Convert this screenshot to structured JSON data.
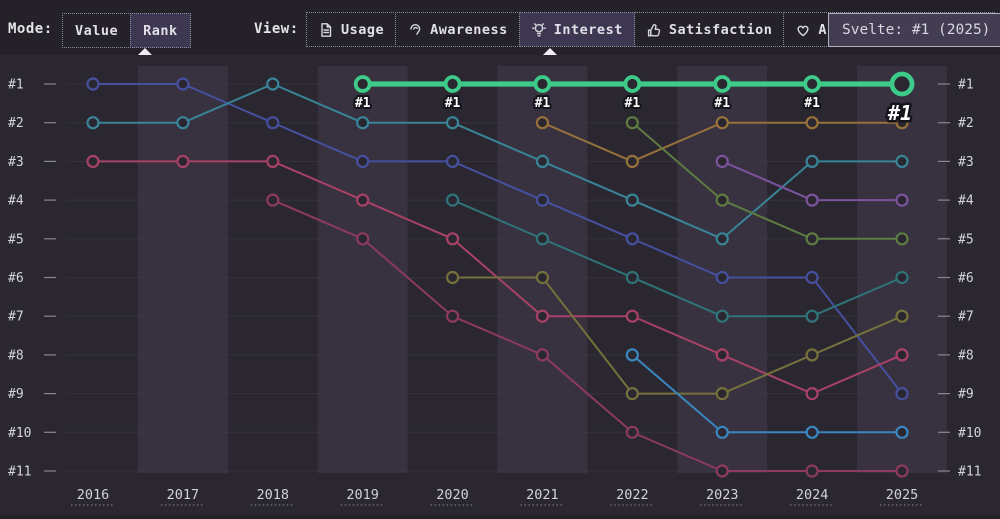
{
  "header": {
    "mode_label": "Mode:",
    "mode_options": [
      {
        "label": "Value",
        "selected": false
      },
      {
        "label": "Rank",
        "selected": true
      }
    ],
    "view_label": "View:",
    "view_tabs": [
      {
        "label": "Usage",
        "icon": "file-text-icon",
        "selected": false
      },
      {
        "label": "Awareness",
        "icon": "ear-icon",
        "selected": false
      },
      {
        "label": "Interest",
        "icon": "lightbulb-icon",
        "selected": true
      },
      {
        "label": "Satisfaction",
        "icon": "thumbs-up-icon",
        "selected": false
      },
      {
        "label": "Appreciation",
        "icon": "heart-icon",
        "selected": false
      }
    ],
    "tooltip_text": "Svelte: #1 (2025)"
  },
  "chart_data": {
    "type": "line",
    "variant": "rank-bump",
    "title": "",
    "xlabel": "",
    "ylabel": "",
    "x": [
      2016,
      2017,
      2018,
      2019,
      2020,
      2021,
      2022,
      2023,
      2024,
      2025
    ],
    "y_axis_labels": [
      "#1",
      "#2",
      "#3",
      "#4",
      "#5",
      "#6",
      "#7",
      "#8",
      "#9",
      "#10",
      "#11"
    ],
    "y_axis_inverted": true,
    "y_range": [
      1,
      11
    ],
    "banded_years": [
      2017,
      2019,
      2021,
      2023,
      2025
    ],
    "grid": true,
    "legend_position": "none",
    "highlight_series": "Svelte",
    "series": [
      {
        "name": "series-indigo",
        "color": "#46509e",
        "highlight": false,
        "ranks": [
          1,
          1,
          2,
          3,
          3,
          4,
          5,
          6,
          6,
          9
        ]
      },
      {
        "name": "series-teal",
        "color": "#3a8498",
        "highlight": false,
        "ranks": [
          2,
          2,
          1,
          2,
          2,
          3,
          4,
          5,
          3,
          3
        ]
      },
      {
        "name": "series-crimson",
        "color": "#a84166",
        "highlight": false,
        "ranks": [
          3,
          3,
          3,
          4,
          5,
          7,
          7,
          8,
          9,
          8
        ]
      },
      {
        "name": "series-maroon",
        "color": "#8c3a5f",
        "highlight": false,
        "ranks": [
          null,
          null,
          4,
          5,
          7,
          8,
          10,
          11,
          11,
          11
        ]
      },
      {
        "name": "series-dark-cyan",
        "color": "#2f7478",
        "highlight": false,
        "ranks": [
          null,
          null,
          null,
          null,
          4,
          5,
          6,
          7,
          7,
          6
        ]
      },
      {
        "name": "series-olive",
        "color": "#75713c",
        "highlight": false,
        "ranks": [
          null,
          null,
          null,
          null,
          6,
          6,
          9,
          9,
          8,
          7
        ]
      },
      {
        "name": "series-amber",
        "color": "#97713a",
        "highlight": false,
        "ranks": [
          null,
          null,
          null,
          null,
          null,
          2,
          3,
          2,
          2,
          2
        ]
      },
      {
        "name": "series-moss",
        "color": "#5e7b42",
        "highlight": false,
        "ranks": [
          null,
          null,
          null,
          null,
          null,
          null,
          2,
          4,
          5,
          5
        ]
      },
      {
        "name": "series-azure",
        "color": "#3a87c0",
        "highlight": false,
        "ranks": [
          null,
          null,
          null,
          null,
          null,
          null,
          8,
          10,
          10,
          10
        ]
      },
      {
        "name": "series-violet",
        "color": "#7b549c",
        "highlight": false,
        "ranks": [
          null,
          null,
          null,
          null,
          null,
          null,
          null,
          3,
          4,
          4
        ]
      },
      {
        "name": "Svelte",
        "color": "#3ecb8a",
        "highlight": true,
        "point_label": "#1",
        "ranks": [
          null,
          null,
          null,
          1,
          1,
          1,
          1,
          1,
          1,
          1
        ]
      }
    ]
  },
  "colors": {
    "page_bg": "#242128",
    "card_bg": "#2a2730",
    "band": "#373140",
    "selected_bg": "#3d3752",
    "dotted_border": "#8d8a98",
    "tooltip_bg": "#433d54",
    "tooltip_border": "#b5afc2",
    "grid": "#3f3b49",
    "tick": "#8a8693",
    "text": "#e2dfe7",
    "axis_text": "#d6d3dc",
    "annotation_text": "#ffffff",
    "caret": "#efedf3",
    "highlight": "#3ecb8a"
  }
}
